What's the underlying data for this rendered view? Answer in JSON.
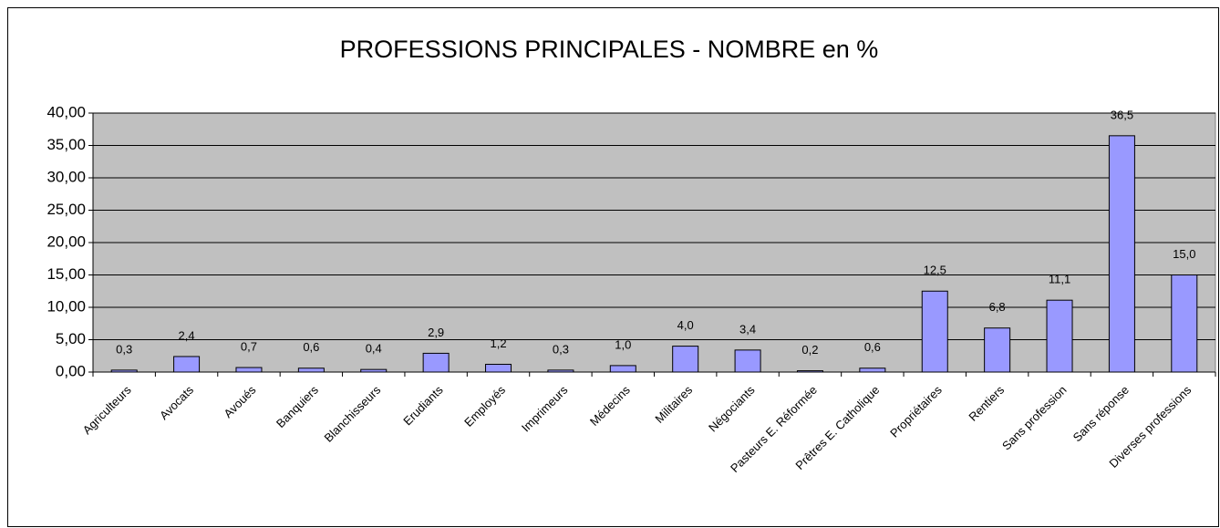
{
  "chart_data": {
    "type": "bar",
    "title": "PROFESSIONS PRINCIPALES - NOMBRE en %",
    "categories": [
      "Agriculteurs",
      "Avocats",
      "Avoués",
      "Banquiers",
      "Blanchisseurs",
      "Erudiants",
      "Employés",
      "Imprimeurs",
      "Médecins",
      "Militaires",
      "Négociants",
      "Pasteurs E. Réformée",
      "Prêtres E. Catholique",
      "Propriétaires",
      "Rentiers",
      "Sans profession",
      "Sans réponse",
      "Diverses professions"
    ],
    "values": [
      0.3,
      2.4,
      0.7,
      0.6,
      0.4,
      2.9,
      1.2,
      0.3,
      1.0,
      4.0,
      3.4,
      0.2,
      0.6,
      12.5,
      6.8,
      11.1,
      36.5,
      15.0
    ],
    "value_labels": [
      "0,3",
      "2,4",
      "0,7",
      "0,6",
      "0,4",
      "2,9",
      "1,2",
      "0,3",
      "1,0",
      "4,0",
      "3,4",
      "0,2",
      "0,6",
      "12,5",
      "6,8",
      "11,1",
      "36,5",
      "15,0"
    ],
    "color": "#9999ff",
    "ylim": [
      0,
      40
    ],
    "yticks": [
      {
        "value": 0,
        "label": "0,00"
      },
      {
        "value": 5,
        "label": "5,00"
      },
      {
        "value": 10,
        "label": "10,00"
      },
      {
        "value": 15,
        "label": "15,00"
      },
      {
        "value": 20,
        "label": "20,00"
      },
      {
        "value": 25,
        "label": "25,00"
      },
      {
        "value": 30,
        "label": "30,00"
      },
      {
        "value": 35,
        "label": "35,00"
      },
      {
        "value": 40,
        "label": "40,00"
      }
    ],
    "grid": true
  }
}
